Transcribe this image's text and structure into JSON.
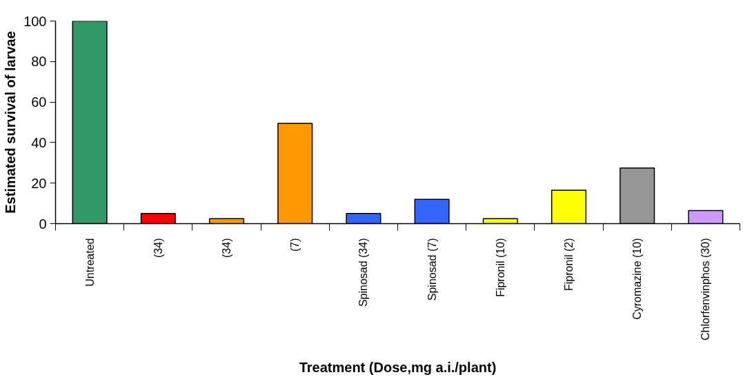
{
  "chart_data": {
    "type": "bar",
    "xlabel": "Treatment (Dose,mg a.i./plant)",
    "ylabel": "Estimated survival of larvae",
    "categories": [
      "Untreated",
      "(34)",
      "(34)",
      "(7)",
      "Spinosad (34)",
      "Spinosad (7)",
      "Fipronil (10)",
      "Fipronil (2)",
      "Cyromazine (10)",
      "Chlorfenvinphos (30)"
    ],
    "values": [
      100,
      5,
      2.5,
      49.5,
      5,
      12,
      2.5,
      16.5,
      27.5,
      6.5
    ],
    "colors": [
      "#339966",
      "#ff0000",
      "#ff9900",
      "#ff9900",
      "#3366ff",
      "#3366ff",
      "#ffff00",
      "#ffff00",
      "#969696",
      "#cc99ff"
    ],
    "ylim": [
      0,
      100
    ],
    "yticks": [
      0,
      20,
      40,
      60,
      80,
      100
    ],
    "grid": false
  }
}
